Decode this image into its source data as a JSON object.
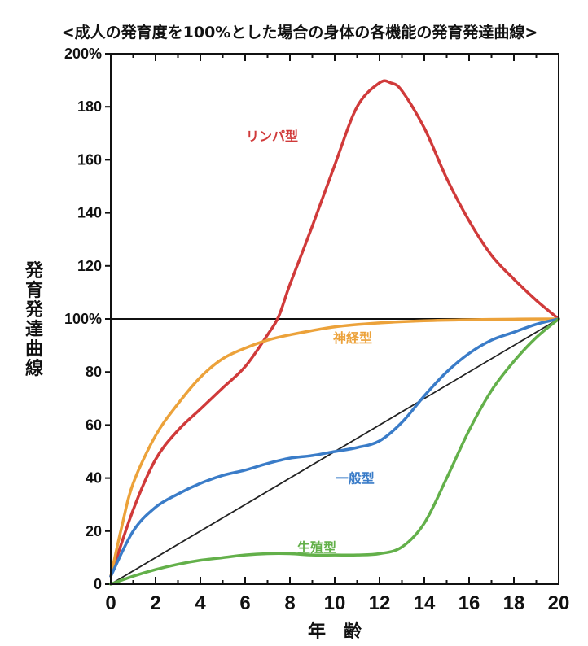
{
  "chart_data": {
    "type": "line",
    "title": "<成人の発育度を100%とした場合の身体の各機能の発育発達曲線>",
    "xlabel": "年　齢",
    "ylabel": "発育発達曲線",
    "xlim": [
      0,
      20
    ],
    "ylim": [
      0,
      200
    ],
    "x_ticks": [
      0,
      2,
      4,
      6,
      8,
      10,
      12,
      14,
      16,
      18,
      20
    ],
    "y_ticks": [
      0,
      20,
      40,
      60,
      80,
      100,
      120,
      140,
      160,
      180,
      200
    ],
    "y_tick_labels": [
      "0",
      "20",
      "40",
      "60",
      "80",
      "100%",
      "120",
      "140",
      "160",
      "180",
      "200%"
    ],
    "reference_line": {
      "y": 100
    },
    "series": [
      {
        "name": "リンパ型",
        "color": "#d03a3a",
        "label_at": [
          7.2,
          169
        ],
        "x": [
          0,
          1,
          2,
          3,
          4,
          5,
          6,
          7,
          7.5,
          8,
          9,
          10,
          11,
          12,
          12.5,
          13,
          14,
          15,
          16,
          17,
          18,
          19,
          20
        ],
        "y": [
          3,
          28,
          47,
          58,
          66,
          74,
          82,
          94,
          101,
          113,
          135,
          158,
          180,
          189,
          189,
          186,
          172,
          153,
          137,
          124,
          115,
          107,
          100
        ]
      },
      {
        "name": "神経型",
        "color": "#eca23a",
        "label_at": [
          10.8,
          93
        ],
        "x": [
          0,
          0.5,
          1,
          2,
          3,
          4,
          5,
          6,
          7,
          8,
          10,
          12,
          14,
          16,
          18,
          20
        ],
        "y": [
          3,
          22,
          38,
          56,
          68,
          78,
          85,
          89,
          92,
          94,
          97,
          98.5,
          99.3,
          99.7,
          99.9,
          100
        ]
      },
      {
        "name": "一般型",
        "color": "#3a7cc8",
        "label_at": [
          10.9,
          40
        ],
        "x": [
          0,
          1,
          2,
          3,
          4,
          5,
          6,
          7,
          8,
          9,
          10,
          11,
          12,
          13,
          14,
          15,
          16,
          17,
          18,
          19,
          20
        ],
        "y": [
          3,
          20,
          29,
          34,
          38,
          41,
          43,
          45.5,
          47.5,
          48.5,
          50,
          51.5,
          54,
          61,
          71,
          80,
          87,
          92,
          95,
          98,
          100
        ]
      },
      {
        "name": "生殖型",
        "color": "#63b04a",
        "label_at": [
          9.2,
          14
        ],
        "x": [
          0,
          1,
          2,
          3,
          4,
          5,
          6,
          7,
          8,
          9,
          10,
          11,
          12,
          13,
          14,
          15,
          16,
          17,
          18,
          19,
          20
        ],
        "y": [
          0,
          3,
          5.5,
          7.5,
          9,
          10,
          11,
          11.5,
          11.5,
          11,
          11,
          11,
          11.5,
          14,
          23,
          40,
          58,
          73,
          84,
          93,
          100
        ]
      },
      {
        "color": "#222222",
        "x": [
          0,
          20
        ],
        "y": [
          0,
          100
        ]
      }
    ]
  }
}
